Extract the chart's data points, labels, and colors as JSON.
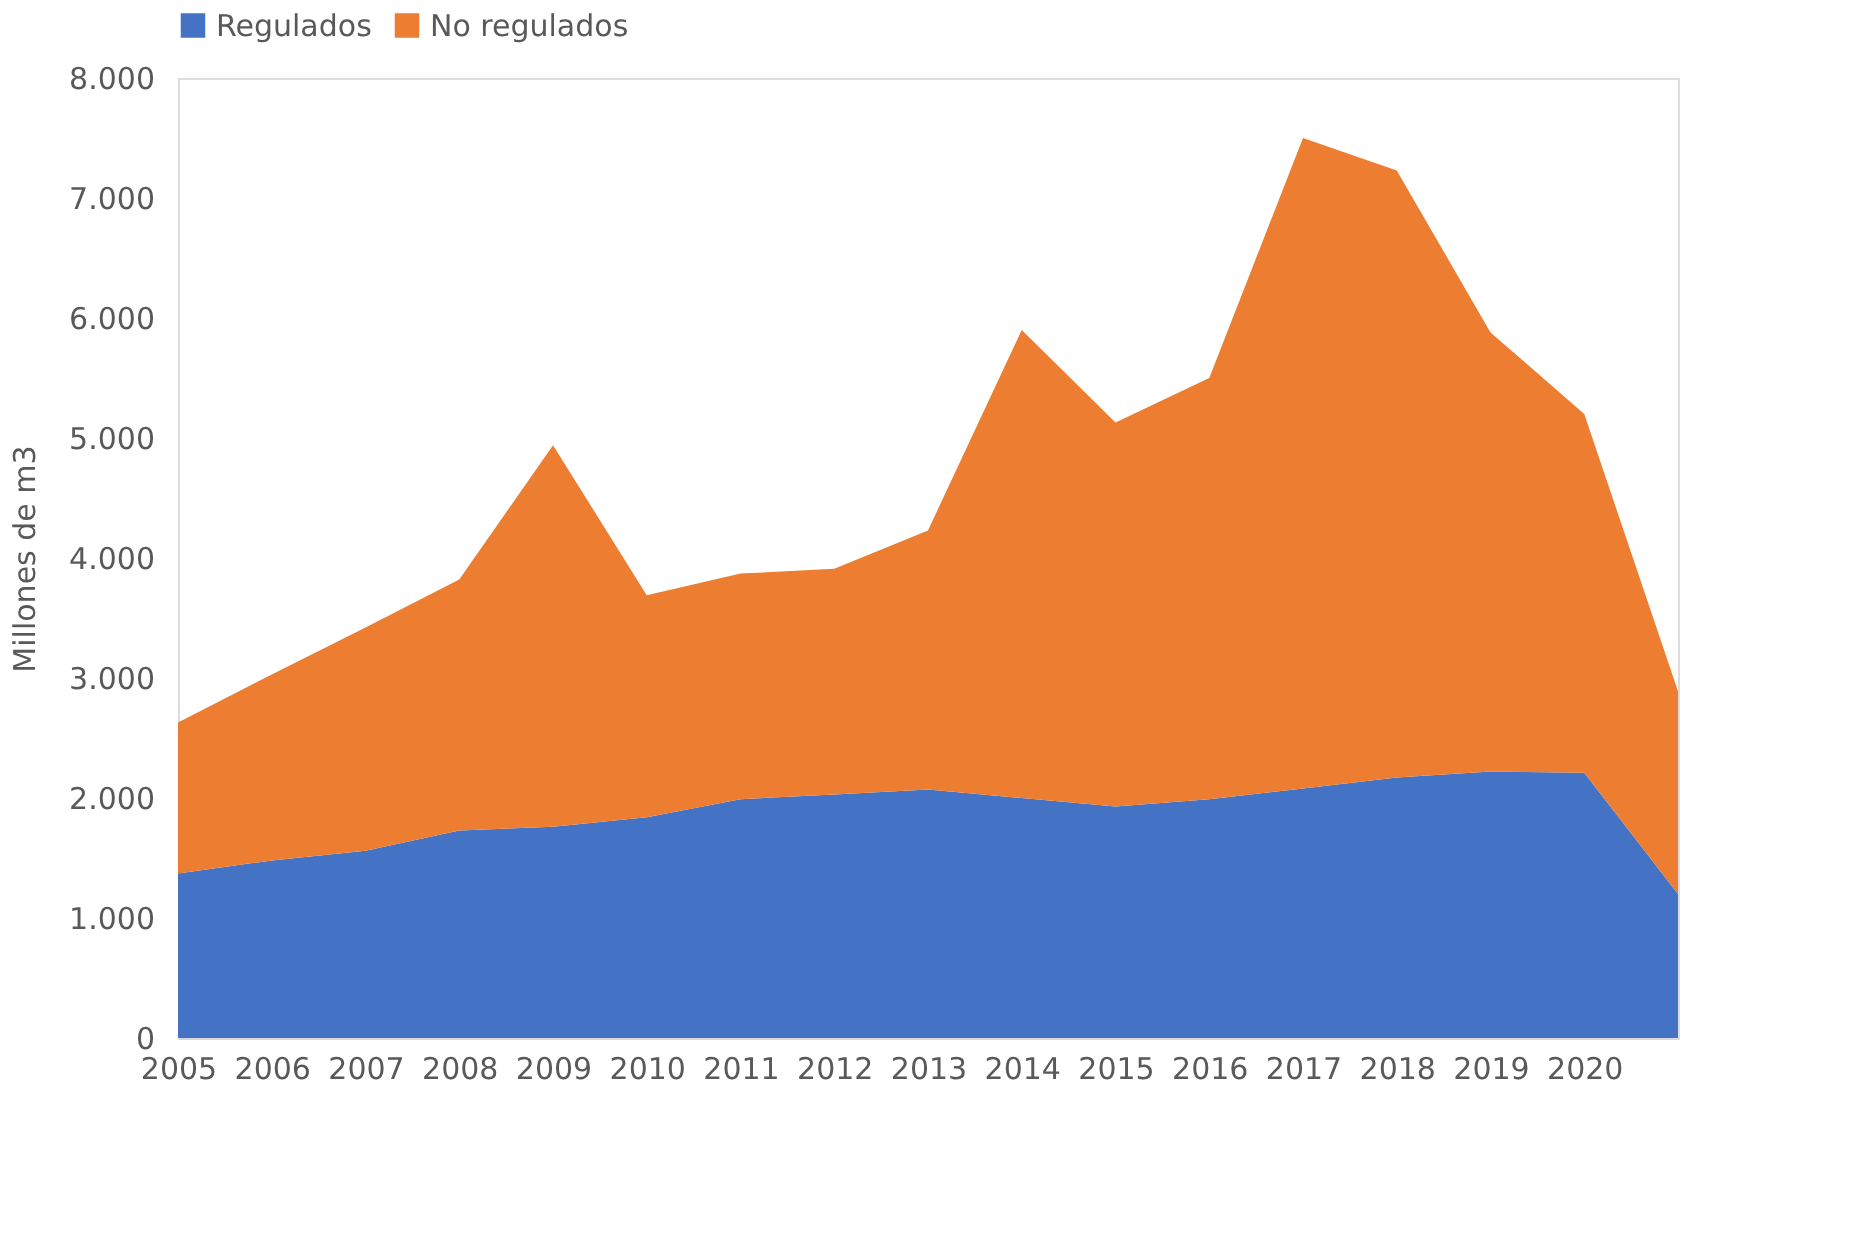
{
  "chart_data": {
    "type": "area",
    "stacked": true,
    "ylabel": "Millones de m3",
    "legend": "top",
    "grid": false,
    "categories": [
      "2005",
      "2006",
      "2007",
      "2008",
      "2009",
      "2010",
      "2011",
      "2012",
      "2013",
      "2014",
      "2015",
      "2016",
      "2017",
      "2018",
      "2019",
      "2020",
      null
    ],
    "series": [
      {
        "name": "Regulados",
        "color": "#4472c4",
        "values": [
          1370,
          1480,
          1560,
          1730,
          1760,
          1840,
          1990,
          2030,
          2070,
          2000,
          1930,
          1990,
          2080,
          2170,
          2220,
          2210,
          1200
        ]
      },
      {
        "name": "No regulados",
        "color": "#ed7d31",
        "values": [
          1260,
          1550,
          1860,
          2090,
          3180,
          1850,
          1880,
          1880,
          2160,
          3900,
          3200,
          3510,
          5420,
          5060,
          3660,
          2990,
          1690
        ]
      }
    ],
    "ylim": [
      0,
      8000
    ],
    "yticks": [
      {
        "value": 0,
        "label": "0"
      },
      {
        "value": 1000,
        "label": "1.000"
      },
      {
        "value": 2000,
        "label": "2.000"
      },
      {
        "value": 3000,
        "label": "3.000"
      },
      {
        "value": 4000,
        "label": "4.000"
      },
      {
        "value": 5000,
        "label": "5.000"
      },
      {
        "value": 6000,
        "label": "6.000"
      },
      {
        "value": 7000,
        "label": "7.000"
      },
      {
        "value": 8000,
        "label": "8.000"
      }
    ]
  }
}
